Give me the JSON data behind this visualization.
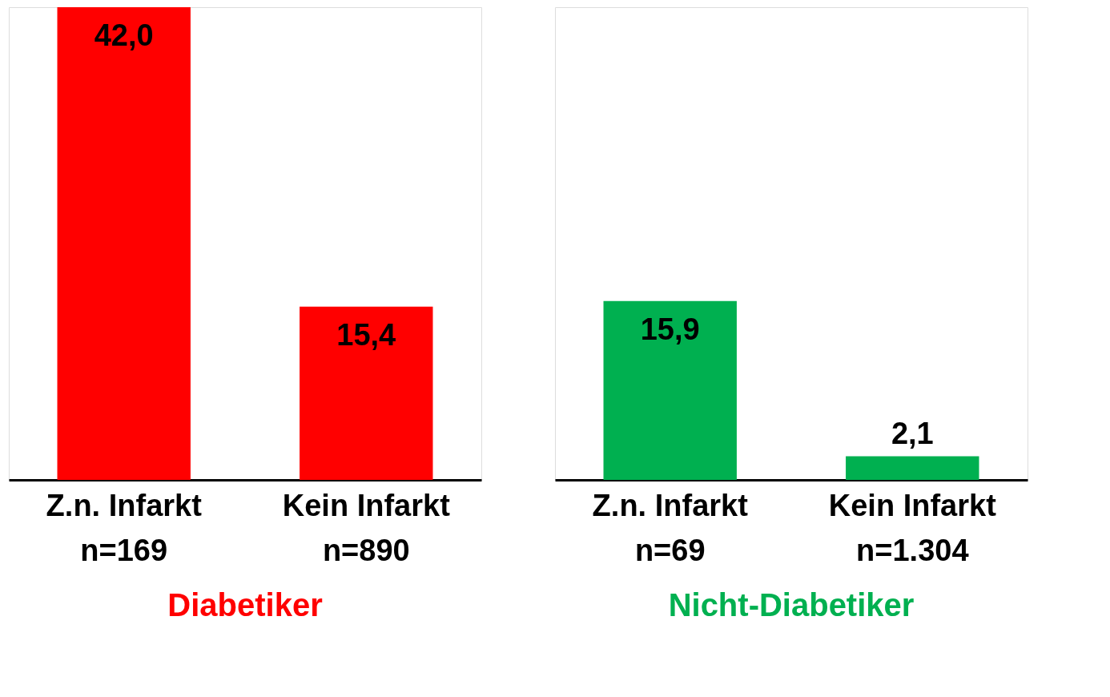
{
  "chart_data": [
    {
      "type": "bar",
      "title": "Diabetiker",
      "categories": [
        "Z.n. Infarkt\nn=169",
        "Kein Infarkt\nn=890"
      ],
      "values": [
        42.0,
        15.4
      ],
      "color": "#ff0000",
      "value_labels": [
        "42,0",
        "15,4"
      ],
      "tick_labels": "x"
    },
    {
      "type": "bar",
      "title": "Nicht-Diabetiker",
      "categories": [
        "Z.n. Infarkt\nn=69",
        "Kein Infarkt\nn=1.304"
      ],
      "values": [
        15.9,
        2.1
      ],
      "color": "#00b050",
      "value_labels": [
        "15,9",
        "2,1"
      ],
      "tick_labels": "x"
    }
  ]
}
